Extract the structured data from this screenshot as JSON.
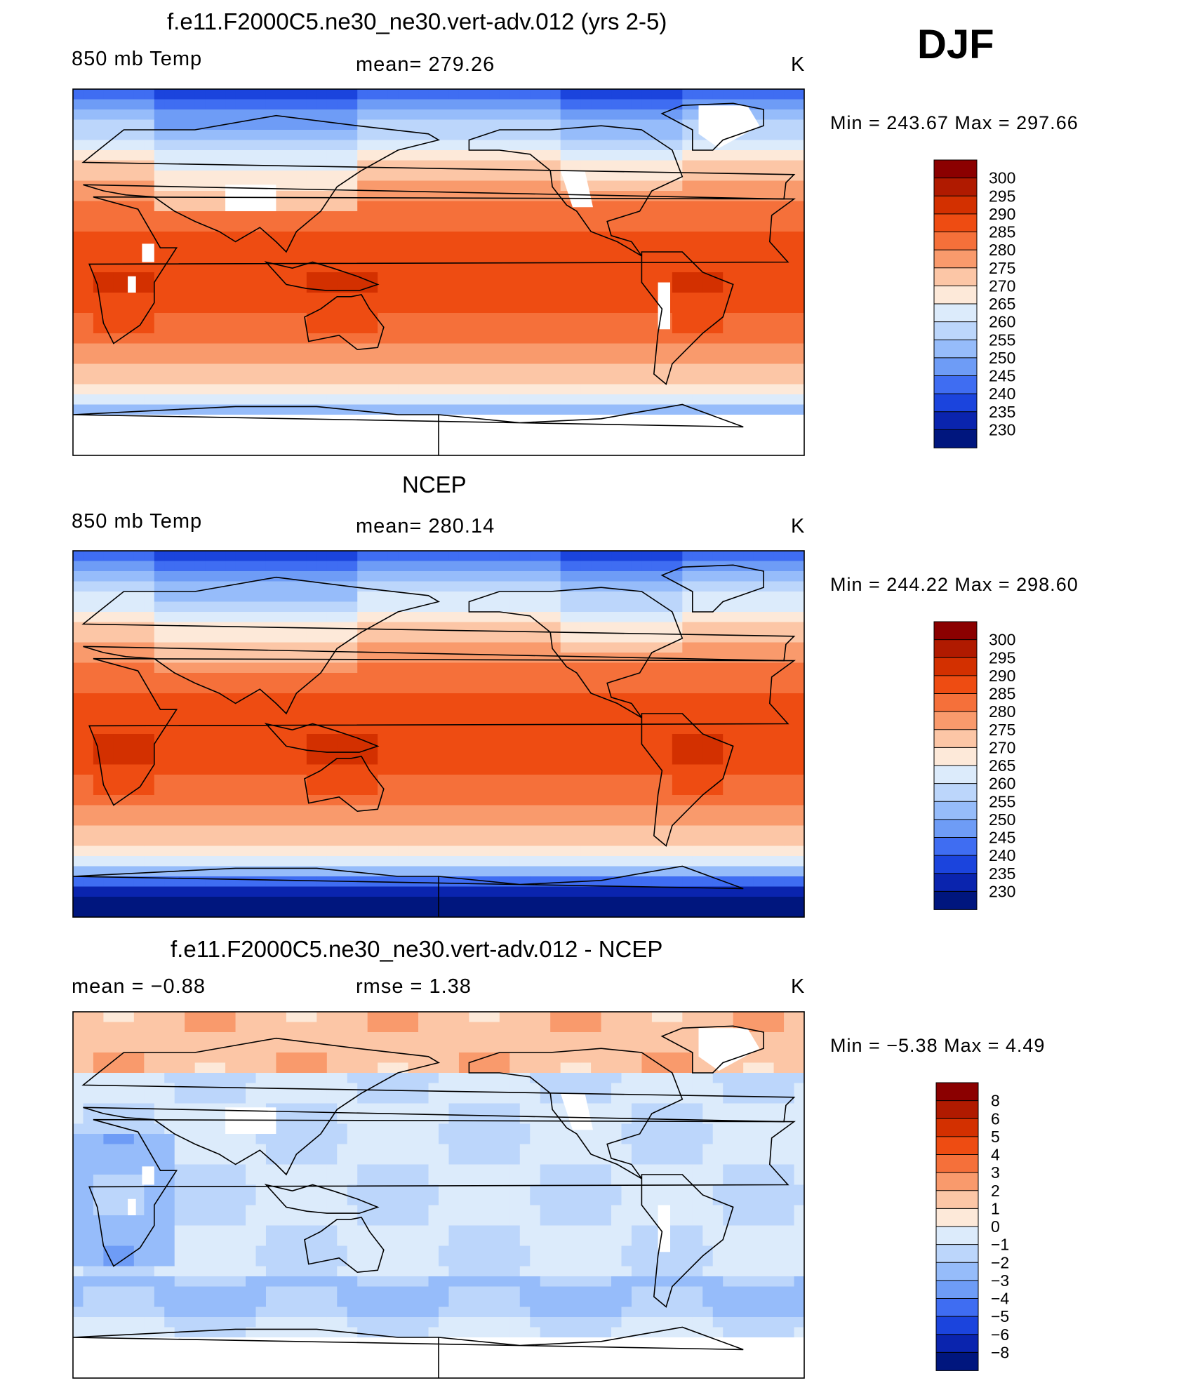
{
  "season": "DJF",
  "panels": [
    {
      "title": "f.e11.F2000C5.ne30_ne30.vert-adv.012 (yrs 2-5)",
      "left_label": "850 mb Temp",
      "center_label": "mean=  279.26",
      "units": "K",
      "minmax": "Min  =  243.67  Max  =  297.66",
      "field": "model",
      "colorbar_labels": [
        "300",
        "295",
        "290",
        "285",
        "280",
        "275",
        "270",
        "265",
        "260",
        "255",
        "250",
        "245",
        "240",
        "235",
        "230"
      ]
    },
    {
      "title": "NCEP",
      "left_label": "850 mb Temp",
      "center_label": "mean=  280.14",
      "units": "K",
      "minmax": "Min  =  244.22  Max  =  298.60",
      "field": "obs",
      "colorbar_labels": [
        "300",
        "295",
        "290",
        "285",
        "280",
        "275",
        "270",
        "265",
        "260",
        "255",
        "250",
        "245",
        "240",
        "235",
        "230"
      ]
    },
    {
      "title": "f.e11.F2000C5.ne30_ne30.vert-adv.012 - NCEP",
      "left_label": "mean  =     −0.88",
      "center_label": "rmse  =     1.38",
      "units": "K",
      "minmax": "Min  =    −5.38  Max  =     4.49",
      "field": "diff",
      "colorbar_labels": [
        "8",
        "6",
        "5",
        "4",
        "3",
        "2",
        "1",
        "0",
        "−1",
        "−2",
        "−3",
        "−4",
        "−5",
        "−6",
        "−8"
      ]
    }
  ],
  "palette": [
    "#8b0000",
    "#b01a00",
    "#d33000",
    "#ee4c12",
    "#f5703a",
    "#f99a6c",
    "#fcc6a6",
    "#fde9d9",
    "#dcebfb",
    "#bcd6fb",
    "#96bcfa",
    "#6e9cf6",
    "#3f6df2",
    "#1b44dd",
    "#0a24ae",
    "#00167e"
  ]
}
